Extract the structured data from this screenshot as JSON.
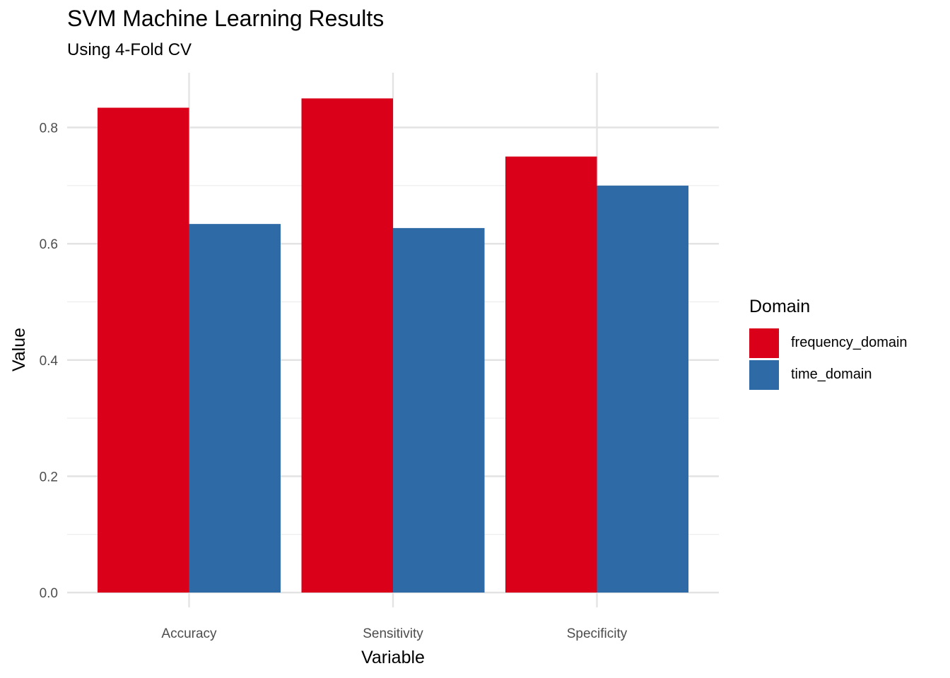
{
  "chart_data": {
    "type": "bar",
    "title": "SVM Machine Learning Results",
    "subtitle": "Using 4-Fold CV",
    "xlabel": "Variable",
    "ylabel": "Value",
    "categories": [
      "Accuracy",
      "Sensitivity",
      "Specificity"
    ],
    "series": [
      {
        "name": "frequency_domain",
        "color": "#DA0019",
        "values": [
          0.834,
          0.85,
          0.75
        ]
      },
      {
        "name": "time_domain",
        "color": "#2D6AA6",
        "values": [
          0.634,
          0.627,
          0.7
        ]
      }
    ],
    "ylim": [
      0,
      0.9
    ],
    "yticks": [
      "0.0",
      "0.2",
      "0.4",
      "0.6",
      "0.8"
    ],
    "legend_title": "Domain",
    "legend_position": "right",
    "grid": true
  }
}
